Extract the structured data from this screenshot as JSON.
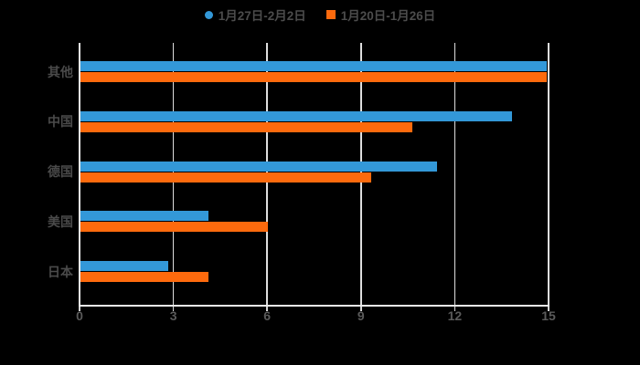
{
  "legend": {
    "items": [
      {
        "label": "1月27日-2月2日",
        "color": "#3398d8",
        "marker": "circle"
      },
      {
        "label": "1月20日-1月26日",
        "color": "#fd6a0d",
        "marker": "square"
      }
    ]
  },
  "chart_data": {
    "type": "bar",
    "orientation": "horizontal",
    "title": "",
    "categories": [
      "其他",
      "中国",
      "德国",
      "美国",
      "日本"
    ],
    "series": [
      {
        "name": "1月27日-2月2日",
        "color": "#3398d8",
        "values": [
          14.9,
          13.8,
          11.4,
          4.1,
          2.8
        ]
      },
      {
        "name": "1月20日-1月26日",
        "color": "#fd6a0d",
        "values": [
          14.9,
          10.6,
          9.3,
          6.0,
          4.1
        ]
      }
    ],
    "xlabel": "",
    "ylabel": "",
    "xlim": [
      0,
      16.9
    ],
    "xticks": [
      0,
      3,
      6,
      9,
      12,
      15
    ],
    "grid": true,
    "legend_position": "top",
    "background": "#000000",
    "grid_color": "#dedede",
    "axis_color": "#ededed",
    "tick_label_color": "#5a5a5a",
    "category_label_color": "#4a4a4a"
  }
}
